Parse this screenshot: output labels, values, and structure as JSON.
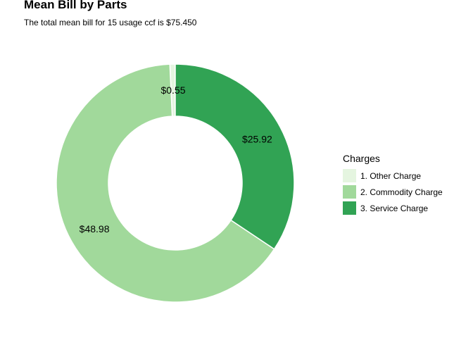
{
  "chart_data": {
    "type": "pie",
    "title": "Mean Bill by Parts",
    "subtitle": "The total mean bill for 15 usage ccf is $75.450",
    "legend": {
      "title": "Charges",
      "position": "right"
    },
    "slices": [
      {
        "name": "1. Other Charge",
        "value": 0.55,
        "label": "$0.55",
        "color": "#e5f5e0"
      },
      {
        "name": "2. Commodity Charge",
        "value": 48.98,
        "label": "$48.98",
        "color": "#a1d99b"
      },
      {
        "name": "3. Service Charge",
        "value": 25.92,
        "label": "$25.92",
        "color": "#31a354"
      }
    ],
    "total": 75.45,
    "donut": true,
    "grid": false
  }
}
